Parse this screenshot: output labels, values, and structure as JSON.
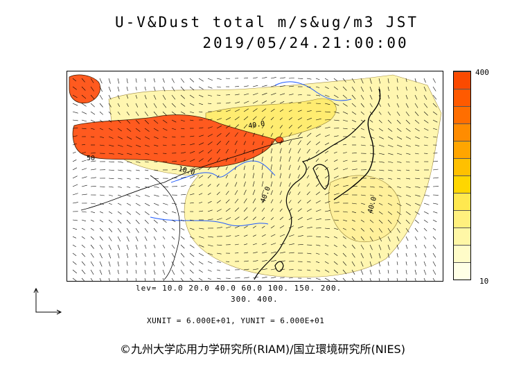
{
  "title": {
    "line1": "U-V&Dust total m/s&ug/m3 JST",
    "line2": "2019/05/24.21:00:00"
  },
  "colorbar": {
    "max_label": "400",
    "min_label": "10",
    "colors": [
      "#ffffe6",
      "#fffcc8",
      "#fff7a6",
      "#fff07e",
      "#ffe84f",
      "#ffd600",
      "#ffc000",
      "#ffa500",
      "#ff8c00",
      "#ff6e00",
      "#ff5a00",
      "#fa4a00"
    ]
  },
  "levels": {
    "line1": "lev= 10.0 20.0 40.0 60.0 100. 150. 200.",
    "line2": "300. 400."
  },
  "units": "XUNIT = 6.000E+01, YUNIT = 6.000E+01",
  "credit": "©九州大学応用力学研究所(RIAM)/国立環境研究所(NIES)",
  "map_labels": {
    "contour_40_north": "40.0",
    "contour_40_china": "40.0",
    "contour_40_japan": "40.0",
    "contour_10_west": "10.0",
    "contour_50": "50"
  },
  "map_colors": {
    "land_line": "#000000",
    "river": "#1e5aff",
    "heavy_dust": "#ff5a1f"
  }
}
